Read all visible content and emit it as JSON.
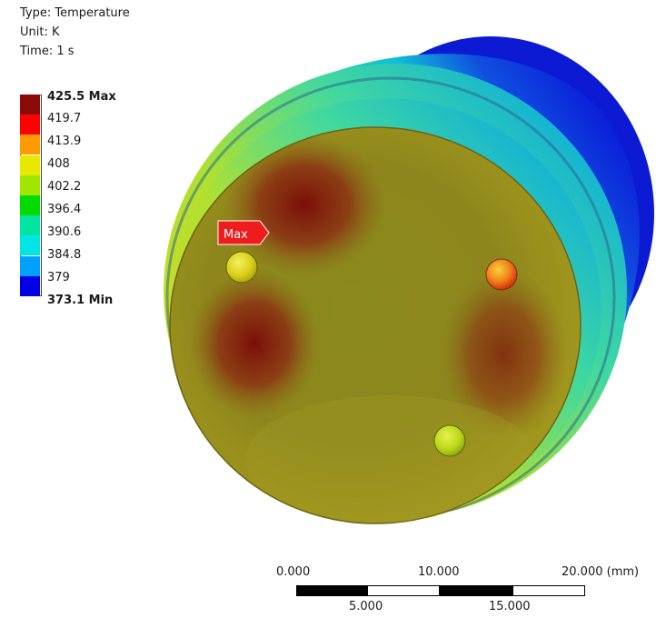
{
  "result_info": {
    "type_line": "Type: Temperature",
    "unit_line": "Unit: K",
    "time_line": "Time: 1 s"
  },
  "legend": {
    "entries": [
      {
        "label": "425.5 Max",
        "color": "#8b0a0a",
        "bold": true
      },
      {
        "label": "419.7",
        "color": "#ff0000",
        "bold": false
      },
      {
        "label": "413.9",
        "color": "#ff9b00",
        "bold": false
      },
      {
        "label": "408",
        "color": "#e8e800",
        "bold": false
      },
      {
        "label": "402.2",
        "color": "#a0e600",
        "bold": false
      },
      {
        "label": "396.4",
        "color": "#00dc00",
        "bold": false
      },
      {
        "label": "390.6",
        "color": "#00e6a0",
        "bold": false
      },
      {
        "label": "384.8",
        "color": "#00e6e6",
        "bold": false
      },
      {
        "label": "379",
        "color": "#00a0ff",
        "bold": false
      },
      {
        "label": "373.1 Min",
        "color": "#0000e6",
        "bold": true
      }
    ]
  },
  "probe": {
    "label": "Max",
    "color": "#ee1c1c"
  },
  "scale_bar": {
    "top_ticks": [
      "0.000",
      "10.000",
      "20.000 (mm)"
    ],
    "bottom_ticks": [
      "5.000",
      "15.000"
    ]
  }
}
